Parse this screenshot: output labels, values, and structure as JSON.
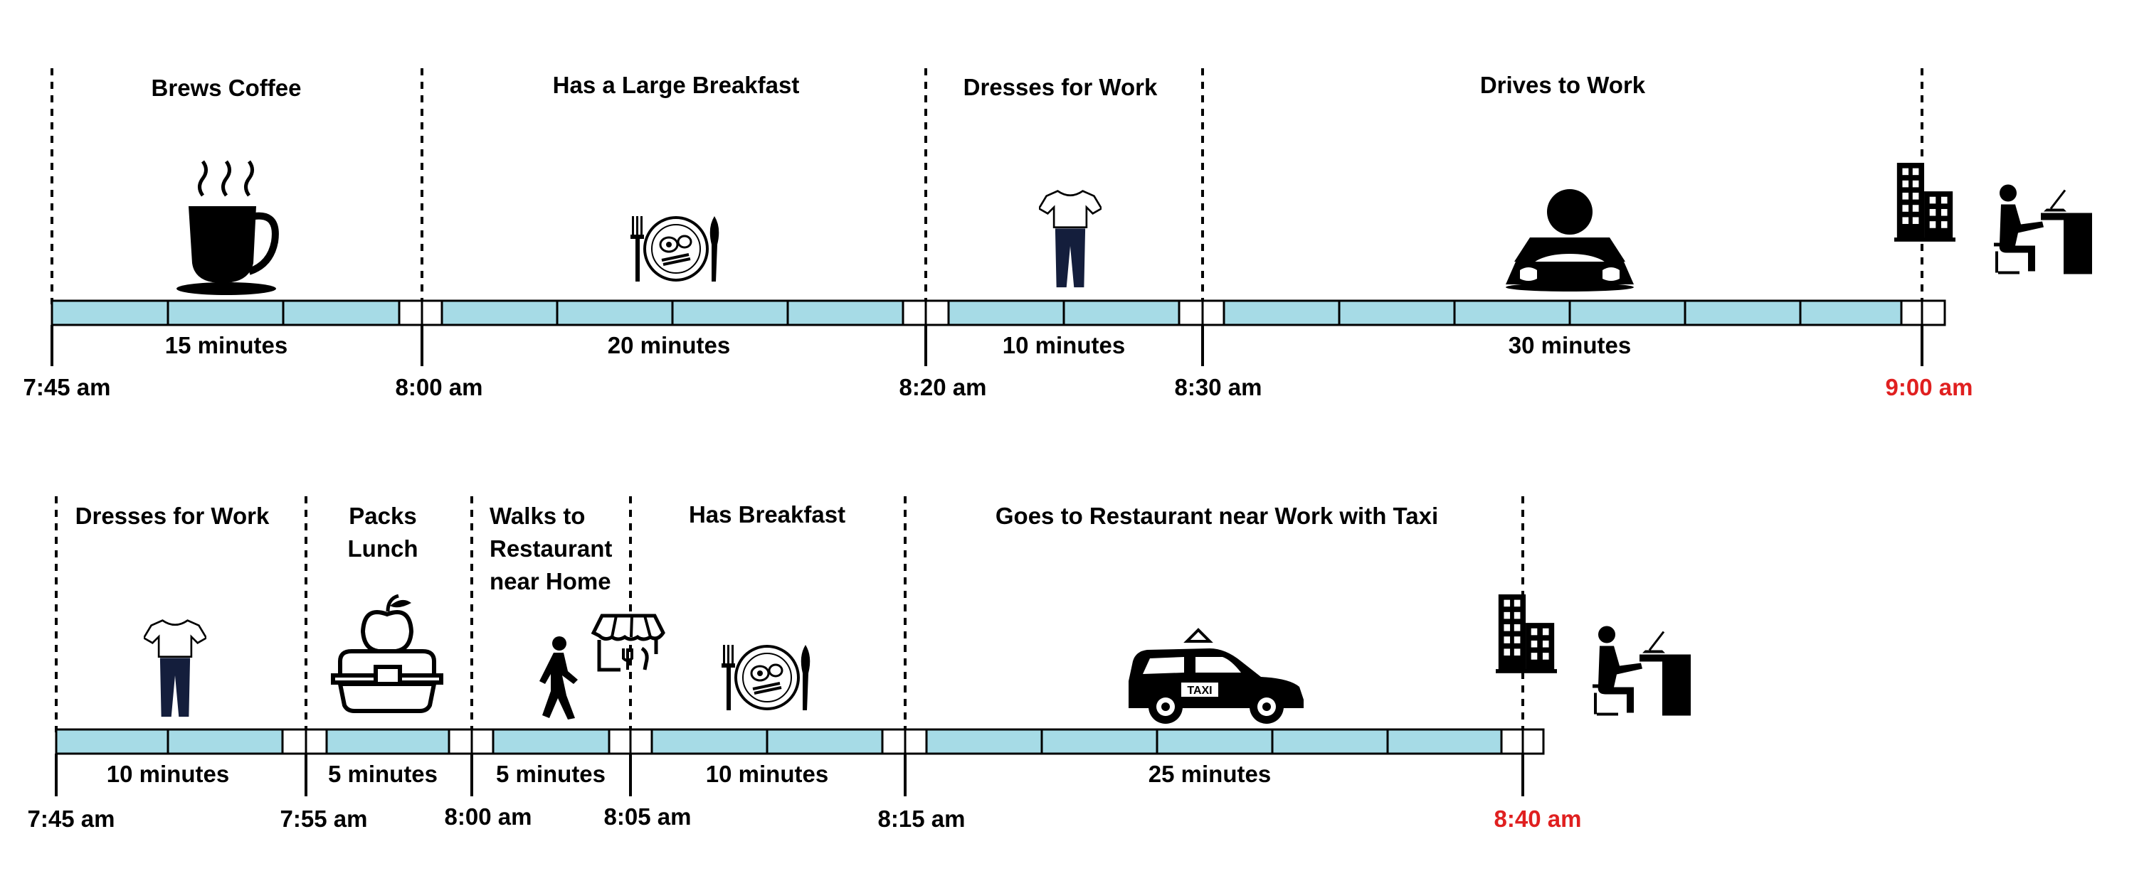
{
  "colors": {
    "bar_fill": "#a6dbe6",
    "bar_stroke": "#000000",
    "end_time": "#e02020",
    "text": "#000000"
  },
  "timelines": [
    {
      "activities": [
        {
          "label": [
            "Brews Coffee"
          ],
          "duration": "15 minutes",
          "icon": "coffee-cup-icon"
        },
        {
          "label": [
            "Has a Large Breakfast"
          ],
          "duration": "20 minutes",
          "icon": "breakfast-plate-icon"
        },
        {
          "label": [
            "Dresses for Work"
          ],
          "duration": "10 minutes",
          "icon": "clothes-icon"
        },
        {
          "label": [
            "Drives to Work"
          ],
          "duration": "30 minutes",
          "icon": "car-driver-icon"
        }
      ],
      "times": [
        "7:45 am",
        "8:00 am",
        "8:20 am",
        "8:30 am",
        "9:00 am"
      ],
      "arrival_icons": [
        "office-building-icon",
        "person-at-desk-icon"
      ]
    },
    {
      "activities": [
        {
          "label": [
            "Dresses for Work"
          ],
          "duration": "10 minutes",
          "icon": "clothes-icon"
        },
        {
          "label": [
            "Packs",
            "Lunch"
          ],
          "duration": "5 minutes",
          "icon": "lunchbox-icon"
        },
        {
          "label": [
            "Walks to",
            "Restaurant",
            "near Home"
          ],
          "duration": "5 minutes",
          "icon": "walking-person-icon"
        },
        {
          "label": [
            "Has Breakfast"
          ],
          "duration": "10 minutes",
          "icon": "breakfast-plate-icon"
        },
        {
          "label": [
            "Goes to Restaurant near Work with Taxi"
          ],
          "duration": "25 minutes",
          "icon": "taxi-icon"
        }
      ],
      "times": [
        "7:45 am",
        "7:55 am",
        "8:00 am",
        "8:05 am",
        "8:15 am",
        "8:40 am"
      ],
      "arrival_icons": [
        "office-building-icon",
        "person-at-desk-icon"
      ],
      "extra_icons": [
        "restaurant-store-icon"
      ]
    }
  ]
}
